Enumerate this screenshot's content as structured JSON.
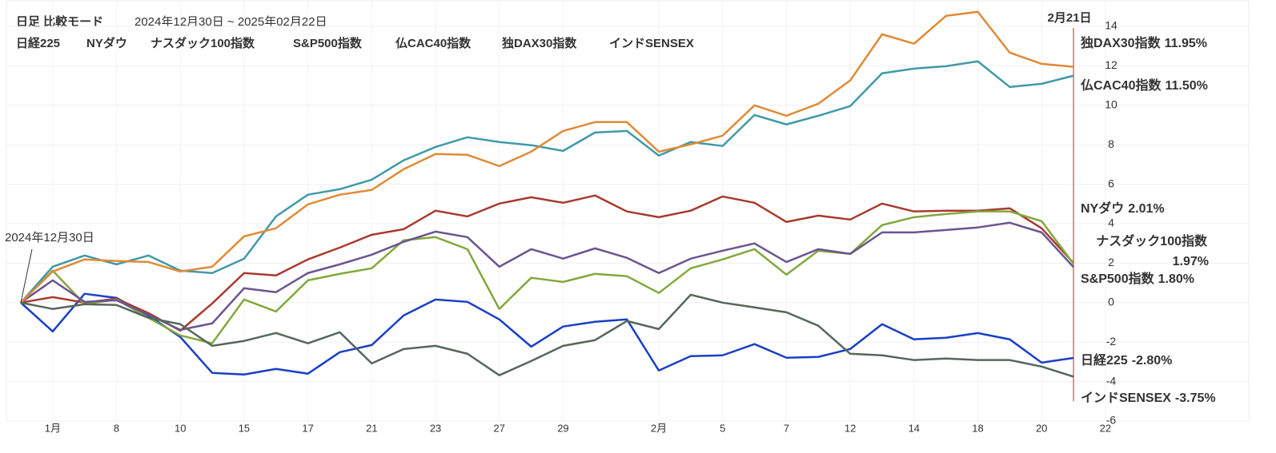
{
  "chart_data": {
    "type": "line",
    "title": "日足 比較モード",
    "subtitle": "2024年12月30日 ~ 2025年02月22日",
    "start_annotation": "2024年12月30日",
    "cursor_label": "2月21日",
    "categories": [
      null,
      "1月",
      null,
      "8",
      null,
      "10",
      null,
      "15",
      null,
      "17",
      null,
      "21",
      null,
      "23",
      null,
      "27",
      null,
      "29",
      null,
      null,
      "2月",
      null,
      "5",
      null,
      "7",
      null,
      "12",
      null,
      "14",
      null,
      "18",
      null,
      "20",
      null,
      "22"
    ],
    "ylim": [
      -6,
      14
    ],
    "yticks": [
      -6,
      -4,
      -2,
      0,
      2,
      4,
      6,
      8,
      10,
      12,
      14
    ],
    "grid": true,
    "series": [
      {
        "name": "日経225",
        "color": "#1a3fc4",
        "values": [
          0,
          -1.46,
          0.45,
          0.24,
          -0.65,
          -1.74,
          -3.56,
          -3.64,
          -3.36,
          -3.6,
          -2.51,
          -2.15,
          -0.65,
          0.16,
          0.04,
          -0.85,
          -2.23,
          -1.21,
          -0.97,
          -0.85,
          -3.44,
          -2.71,
          -2.67,
          -2.1,
          -2.79,
          -2.75,
          -2.35,
          -1.09,
          -1.86,
          -1.78,
          -1.54,
          -1.86,
          -3.04,
          -2.8,
          null
        ],
        "value_labels": [
          null,
          null,
          null,
          null,
          null,
          null,
          null,
          null,
          null,
          null,
          null,
          null,
          null,
          null,
          null,
          null,
          null,
          null,
          null,
          null,
          null,
          null,
          null,
          null,
          null,
          null,
          null,
          null,
          null,
          null,
          null,
          null,
          null,
          "-2.80%",
          null
        ]
      },
      {
        "name": "NYダウ",
        "color": "#a83a2e",
        "values": [
          0,
          0.28,
          0,
          0.2,
          -0.53,
          -1.42,
          -0.04,
          1.5,
          1.38,
          2.19,
          2.79,
          3.44,
          3.72,
          4.66,
          4.37,
          5.02,
          5.34,
          5.06,
          5.43,
          4.62,
          4.33,
          4.66,
          5.38,
          5.06,
          4.09,
          4.41,
          4.21,
          5.02,
          4.62,
          4.66,
          4.66,
          4.78,
          3.77,
          2.01,
          null
        ],
        "value_labels": [
          null,
          null,
          null,
          null,
          null,
          null,
          null,
          null,
          null,
          null,
          null,
          null,
          null,
          null,
          null,
          null,
          null,
          null,
          null,
          null,
          null,
          null,
          null,
          null,
          null,
          null,
          null,
          null,
          null,
          null,
          null,
          null,
          null,
          "2.01%",
          null
        ]
      },
      {
        "name": "ナスダック100指数",
        "color": "#82a83c",
        "values": [
          0,
          1.62,
          -0.08,
          0.16,
          -0.77,
          -1.66,
          -2.06,
          0.16,
          -0.45,
          1.13,
          1.46,
          1.74,
          3.16,
          3.32,
          2.71,
          -0.32,
          1.26,
          1.05,
          1.46,
          1.34,
          0.49,
          1.74,
          2.19,
          2.71,
          1.42,
          2.63,
          2.47,
          3.93,
          4.33,
          4.49,
          4.62,
          4.62,
          4.13,
          1.97,
          null
        ],
        "value_labels": [
          null,
          null,
          null,
          null,
          null,
          null,
          null,
          null,
          null,
          null,
          null,
          null,
          null,
          null,
          null,
          null,
          null,
          null,
          null,
          null,
          null,
          null,
          null,
          null,
          null,
          null,
          null,
          null,
          null,
          null,
          null,
          null,
          null,
          "1.97%",
          null
        ]
      },
      {
        "name": "S&P500指数",
        "color": "#6a5590",
        "values": [
          0,
          1.13,
          0.04,
          0.12,
          -0.61,
          -1.38,
          -1.05,
          0.73,
          0.53,
          1.5,
          1.94,
          2.43,
          3.08,
          3.6,
          3.32,
          1.82,
          2.71,
          2.23,
          2.75,
          2.27,
          1.5,
          2.23,
          2.63,
          3.0,
          2.06,
          2.71,
          2.47,
          3.56,
          3.56,
          3.68,
          3.81,
          4.05,
          3.56,
          1.8,
          null
        ],
        "value_labels": [
          null,
          null,
          null,
          null,
          null,
          null,
          null,
          null,
          null,
          null,
          null,
          null,
          null,
          null,
          null,
          null,
          null,
          null,
          null,
          null,
          null,
          null,
          null,
          null,
          null,
          null,
          null,
          null,
          null,
          null,
          null,
          null,
          null,
          "1.80%",
          null
        ]
      },
      {
        "name": "仏CAC40指数",
        "color": "#3f9aa8",
        "values": [
          0,
          1.82,
          2.39,
          1.94,
          2.39,
          1.62,
          1.5,
          2.23,
          4.37,
          5.47,
          5.75,
          6.23,
          7.21,
          7.89,
          8.38,
          8.14,
          7.98,
          7.69,
          8.62,
          8.7,
          7.45,
          8.14,
          7.94,
          9.51,
          9.03,
          9.47,
          9.96,
          11.62,
          11.86,
          11.98,
          12.23,
          10.93,
          11.09,
          11.5,
          null
        ],
        "value_labels": [
          null,
          null,
          null,
          null,
          null,
          null,
          null,
          null,
          null,
          null,
          null,
          null,
          null,
          null,
          null,
          null,
          null,
          null,
          null,
          null,
          null,
          null,
          null,
          null,
          null,
          null,
          null,
          null,
          null,
          null,
          null,
          null,
          null,
          "11.50%",
          null
        ]
      },
      {
        "name": "独DAX30指数",
        "color": "#e08a35",
        "values": [
          0,
          1.58,
          2.19,
          2.11,
          2.06,
          1.58,
          1.82,
          3.36,
          3.77,
          4.98,
          5.47,
          5.71,
          6.76,
          7.53,
          7.49,
          6.92,
          7.65,
          8.7,
          9.15,
          9.15,
          7.65,
          8.02,
          8.46,
          10.0,
          9.47,
          10.08,
          11.26,
          13.6,
          13.12,
          14.53,
          14.74,
          12.67,
          12.1,
          11.95,
          null
        ],
        "value_labels": [
          null,
          null,
          null,
          null,
          null,
          null,
          null,
          null,
          null,
          null,
          null,
          null,
          null,
          null,
          null,
          null,
          null,
          null,
          null,
          null,
          null,
          null,
          null,
          null,
          null,
          null,
          null,
          null,
          null,
          null,
          null,
          null,
          null,
          "11.95%",
          null
        ]
      },
      {
        "name": "インドSENSEX",
        "color": "#56675a",
        "values": [
          0,
          -0.32,
          -0.08,
          -0.12,
          -0.77,
          -1.09,
          -2.19,
          -1.94,
          -1.54,
          -2.06,
          -1.5,
          -3.08,
          -2.35,
          -2.19,
          -2.59,
          -3.68,
          -2.96,
          -2.19,
          -1.9,
          -0.93,
          -1.34,
          0.4,
          0,
          -0.24,
          -0.49,
          -1.17,
          -2.59,
          -2.67,
          -2.91,
          -2.83,
          -2.91,
          -2.91,
          -3.24,
          -3.75,
          null
        ],
        "value_labels": [
          null,
          null,
          null,
          null,
          null,
          null,
          null,
          null,
          null,
          null,
          null,
          null,
          null,
          null,
          null,
          null,
          null,
          null,
          null,
          null,
          null,
          null,
          null,
          null,
          null,
          null,
          null,
          null,
          null,
          null,
          null,
          null,
          null,
          "-3.75%",
          null
        ]
      }
    ]
  }
}
